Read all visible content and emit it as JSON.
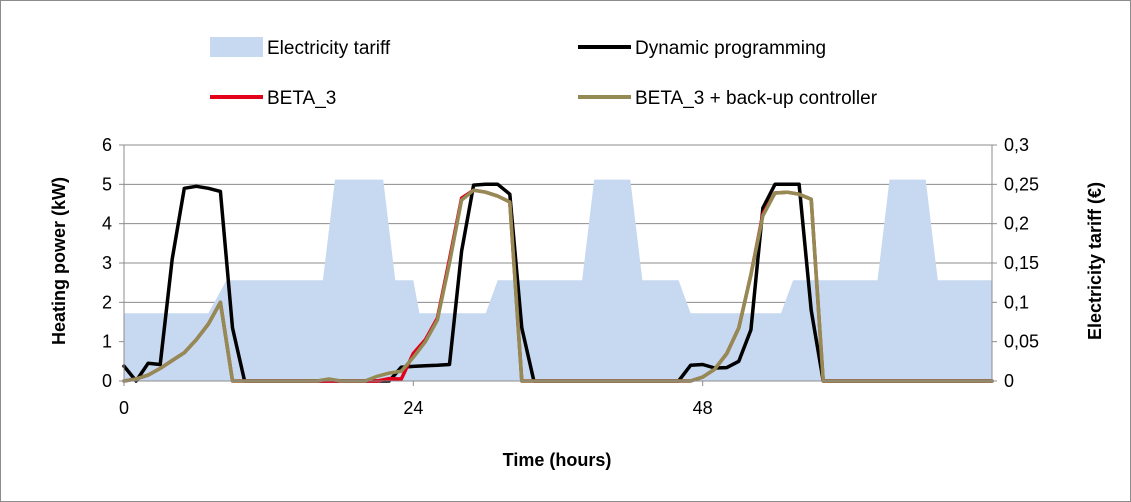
{
  "chart_data": {
    "type": "line",
    "xlabel": "Time (hours)",
    "ylabel": "Heating power (kW)",
    "y2label": "Electricity tariff (€)",
    "xlim": [
      0,
      72
    ],
    "ylim": [
      0,
      6
    ],
    "y2lim": [
      0,
      0.3
    ],
    "x_ticks": [
      "0",
      "24",
      "48"
    ],
    "x_tick_values": [
      0,
      24,
      48
    ],
    "y_ticks": [
      "0",
      "1",
      "2",
      "3",
      "4",
      "5",
      "6"
    ],
    "y2_ticks": [
      "0",
      "0,05",
      "0,1",
      "0,15",
      "0,2",
      "0,25",
      "0,3"
    ],
    "grid": "horizontal",
    "legend_placement": "top",
    "series": [
      {
        "name": "Electricity tariff",
        "kind": "area",
        "axis": "right",
        "color": "#c6d9f1",
        "x": [
          0,
          0,
          7,
          8.5,
          16.5,
          17.5,
          21.5,
          22.5,
          24,
          24.5,
          30,
          31,
          38,
          39,
          42,
          43,
          46,
          47,
          48,
          49,
          54.5,
          55.5,
          62.5,
          63.5,
          66.5,
          67.5,
          71.5,
          72,
          72
        ],
        "values": [
          0,
          0.086,
          0.086,
          0.128,
          0.128,
          0.256,
          0.256,
          0.128,
          0.128,
          0.086,
          0.086,
          0.128,
          0.128,
          0.256,
          0.256,
          0.128,
          0.128,
          0.086,
          0.086,
          0.086,
          0.086,
          0.128,
          0.128,
          0.256,
          0.256,
          0.128,
          0.128,
          0.128,
          0
        ]
      },
      {
        "name": "Dynamic programming",
        "kind": "line",
        "axis": "left",
        "color": "#000000",
        "x": [
          0,
          1,
          2,
          3,
          4,
          5,
          6,
          7,
          8,
          9,
          10,
          11,
          12,
          13,
          14,
          15,
          16,
          17,
          18,
          19,
          20,
          21,
          22,
          23,
          24,
          25,
          26,
          27,
          28,
          29,
          30,
          31,
          32,
          33,
          34,
          35,
          36,
          37,
          38,
          39,
          40,
          41,
          42,
          43,
          44,
          45,
          46,
          47,
          48,
          49,
          50,
          51,
          52,
          53,
          54,
          55,
          56,
          57,
          58,
          59,
          60,
          61,
          62,
          63,
          64,
          65,
          66,
          67,
          68,
          69,
          70,
          71,
          72
        ],
        "values": [
          0.38,
          0,
          0.45,
          0.42,
          3.1,
          4.9,
          4.95,
          4.9,
          4.82,
          1.35,
          0,
          0,
          0,
          0,
          0,
          0,
          0,
          0,
          0,
          0,
          0,
          0,
          0,
          0.35,
          0.37,
          0.39,
          0.4,
          0.42,
          3.3,
          4.98,
          5.0,
          5.0,
          4.75,
          1.35,
          0,
          0,
          0,
          0,
          0,
          0,
          0,
          0,
          0,
          0,
          0,
          0,
          0,
          0.4,
          0.42,
          0.33,
          0.34,
          0.5,
          1.3,
          4.4,
          5.0,
          5.0,
          5.0,
          1.8,
          0,
          0,
          0,
          0,
          0,
          0,
          0,
          0,
          0,
          0,
          0,
          0,
          0,
          0,
          0
        ]
      },
      {
        "name": "BETA_3",
        "kind": "line",
        "axis": "left",
        "color": "#e2001a",
        "x": [
          0,
          1,
          2,
          3,
          4,
          5,
          6,
          7,
          8,
          9,
          10,
          11,
          12,
          13,
          14,
          15,
          16,
          17,
          18,
          19,
          20,
          21,
          22,
          23,
          24,
          25,
          26,
          27,
          28,
          29,
          30,
          31,
          32,
          33,
          34,
          35,
          36,
          37,
          38,
          39,
          40,
          41,
          42,
          43,
          44,
          45,
          46,
          47,
          48,
          49,
          50,
          51,
          52,
          53,
          54,
          55,
          56,
          57,
          58,
          59,
          60,
          61,
          62,
          63,
          64,
          65,
          66,
          67,
          68,
          69,
          70,
          71,
          72
        ],
        "values": [
          0,
          0.05,
          0.15,
          0.32,
          0.52,
          0.72,
          1.05,
          1.45,
          2.0,
          0,
          0,
          0,
          0,
          0,
          0,
          0,
          0,
          0,
          0,
          0,
          0,
          0,
          0.06,
          0.05,
          0.7,
          1.05,
          1.6,
          3.1,
          4.65,
          4.85,
          4.8,
          4.7,
          4.55,
          0,
          0,
          0,
          0,
          0,
          0,
          0,
          0,
          0,
          0,
          0,
          0,
          0,
          0,
          0,
          0.1,
          0.3,
          0.7,
          1.35,
          2.7,
          4.25,
          4.78,
          4.8,
          4.75,
          4.62,
          0,
          0,
          0,
          0,
          0,
          0,
          0,
          0,
          0,
          0,
          0,
          0,
          0,
          0,
          0
        ]
      },
      {
        "name": "BETA_3 + back-up controller",
        "kind": "line",
        "axis": "left",
        "color": "#948a54",
        "x": [
          0,
          1,
          2,
          3,
          4,
          5,
          6,
          7,
          8,
          9,
          10,
          11,
          12,
          13,
          14,
          15,
          16,
          17,
          18,
          19,
          20,
          21,
          22,
          23,
          24,
          25,
          26,
          27,
          28,
          29,
          30,
          31,
          32,
          33,
          34,
          35,
          36,
          37,
          38,
          39,
          40,
          41,
          42,
          43,
          44,
          45,
          46,
          47,
          48,
          49,
          50,
          51,
          52,
          53,
          54,
          55,
          56,
          57,
          58,
          59,
          60,
          61,
          62,
          63,
          64,
          65,
          66,
          67,
          68,
          69,
          70,
          71,
          72
        ],
        "values": [
          0,
          0.05,
          0.15,
          0.32,
          0.52,
          0.72,
          1.05,
          1.45,
          2.0,
          0,
          0,
          0,
          0,
          0,
          0,
          0,
          0,
          0.05,
          0,
          0,
          0,
          0.12,
          0.2,
          0.25,
          0.6,
          1.0,
          1.55,
          3.0,
          4.6,
          4.85,
          4.8,
          4.7,
          4.55,
          0,
          0,
          0,
          0,
          0,
          0,
          0,
          0,
          0,
          0,
          0,
          0,
          0,
          0,
          0,
          0.1,
          0.3,
          0.7,
          1.35,
          2.7,
          4.2,
          4.78,
          4.8,
          4.75,
          4.62,
          0,
          0,
          0,
          0,
          0,
          0,
          0,
          0,
          0,
          0,
          0,
          0,
          0,
          0,
          0
        ]
      }
    ]
  }
}
